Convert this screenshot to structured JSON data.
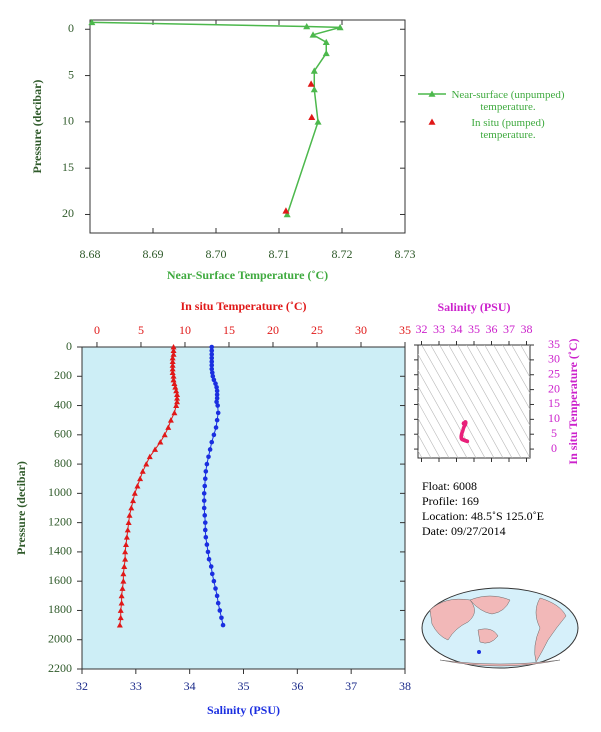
{
  "chart_data": [
    {
      "type": "line",
      "x_label": "Near-Surface Temperature (˚C)",
      "y_label": "Pressure (decibar)",
      "xlim": [
        8.68,
        8.73
      ],
      "xticks": [
        8.68,
        8.69,
        {
          "value": 8.7,
          "label": "8.70"
        },
        8.71,
        8.72,
        8.73
      ],
      "ylim": [
        -1,
        22
      ],
      "y_inverted": true,
      "yticks": [
        0,
        5,
        10,
        15,
        20
      ],
      "series": [
        {
          "name": "Near-surface (unpumped) temperature.",
          "color": "#4cb84c",
          "line": true,
          "temperature": [
            8.6803,
            8.7144,
            8.7197,
            8.7154,
            8.7175,
            8.7175,
            8.7156,
            8.7156,
            8.7162,
            8.7113
          ],
          "pressure": [
            -0.75,
            -0.3,
            -0.2,
            0.6,
            1.4,
            2.6,
            4.5,
            6.5,
            10.0,
            20.0
          ]
        },
        {
          "name": "In situ (pumped) temperature.",
          "color": "#e01818",
          "line": false,
          "temperature": [
            8.7151,
            8.7152,
            8.7111
          ],
          "pressure": [
            5.9,
            9.5,
            19.6
          ]
        }
      ]
    },
    {
      "type": "profile",
      "x_label": "Salinity (PSU)",
      "x2_label": "In situ Temperature (˚C)",
      "y_label": "Pressure (decibar)",
      "xlim": [
        32,
        38
      ],
      "xticks": [
        32,
        33,
        34,
        35,
        36,
        37,
        38
      ],
      "x2lim": [
        -1.7,
        35
      ],
      "x2ticks": [
        0,
        5,
        10,
        15,
        20,
        25,
        30,
        35
      ],
      "ylim": [
        0,
        2200
      ],
      "y_inverted": true,
      "yticks": [
        0,
        200,
        400,
        600,
        800,
        1000,
        1200,
        1400,
        1600,
        1800,
        2000,
        2200
      ],
      "background": "#cdeef6",
      "pressure": [
        0,
        25,
        50,
        75,
        100,
        125,
        150,
        175,
        200,
        225,
        250,
        275,
        300,
        325,
        350,
        375,
        400,
        450,
        500,
        550,
        600,
        650,
        700,
        750,
        800,
        850,
        900,
        950,
        1000,
        1050,
        1100,
        1150,
        1200,
        1250,
        1300,
        1350,
        1400,
        1450,
        1500,
        1550,
        1600,
        1650,
        1700,
        1750,
        1800,
        1850,
        1900
      ],
      "series": [
        {
          "color": "#e01818",
          "axis": "x2",
          "marker": "triangle",
          "values": [
            8.7,
            8.7,
            8.7,
            8.6,
            8.6,
            8.6,
            8.6,
            8.6,
            8.7,
            8.7,
            8.8,
            8.9,
            9.0,
            9.1,
            9.1,
            9.1,
            9.0,
            8.8,
            8.4,
            8.1,
            7.7,
            7.2,
            6.6,
            6.0,
            5.6,
            5.2,
            4.9,
            4.6,
            4.3,
            4.1,
            3.9,
            3.7,
            3.6,
            3.5,
            3.4,
            3.3,
            3.2,
            3.2,
            3.1,
            3.0,
            3.0,
            2.9,
            2.8,
            2.8,
            2.7,
            2.7,
            2.6
          ]
        },
        {
          "color": "#1a2ee0",
          "axis": "x",
          "marker": "dot",
          "values": [
            34.41,
            34.41,
            34.41,
            34.41,
            34.41,
            34.41,
            34.41,
            34.42,
            34.43,
            34.45,
            34.48,
            34.5,
            34.51,
            34.51,
            34.51,
            34.5,
            34.52,
            34.53,
            34.51,
            34.49,
            34.45,
            34.41,
            34.38,
            34.35,
            34.32,
            34.3,
            34.29,
            34.28,
            34.27,
            34.27,
            34.27,
            34.28,
            34.29,
            34.29,
            34.3,
            34.32,
            34.34,
            34.36,
            34.4,
            34.42,
            34.45,
            34.48,
            34.51,
            34.53,
            34.56,
            34.59,
            34.62
          ]
        }
      ]
    },
    {
      "type": "ts_diagram",
      "x_label": "Salinity (PSU)",
      "y_label": "In situ Temperature (˚C)",
      "xlim": [
        31.8,
        38.2
      ],
      "xticks": [
        32,
        33,
        34,
        35,
        36,
        37,
        38
      ],
      "ylim": [
        -3,
        35
      ],
      "yticks": [
        0,
        5,
        10,
        15,
        20,
        25,
        30,
        35
      ],
      "color": "#e8207a"
    }
  ],
  "info": [
    "Float:  6008",
    "Profile:  169",
    "Location:  48.5˚S  125.0˚E",
    "Date:  09/27/2014"
  ]
}
